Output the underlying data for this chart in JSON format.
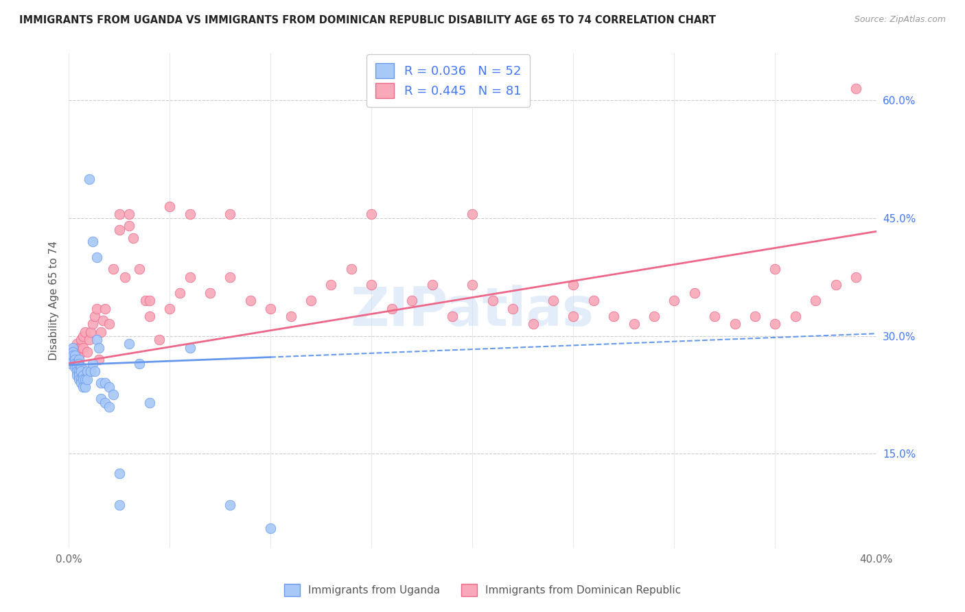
{
  "title": "IMMIGRANTS FROM UGANDA VS IMMIGRANTS FROM DOMINICAN REPUBLIC DISABILITY AGE 65 TO 74 CORRELATION CHART",
  "source": "Source: ZipAtlas.com",
  "ylabel": "Disability Age 65 to 74",
  "xlim": [
    0.0,
    0.4
  ],
  "ylim": [
    0.03,
    0.66
  ],
  "x_tick_positions": [
    0.0,
    0.05,
    0.1,
    0.15,
    0.2,
    0.25,
    0.3,
    0.35,
    0.4
  ],
  "x_tick_labels": [
    "0.0%",
    "",
    "",
    "",
    "",
    "",
    "",
    "",
    "40.0%"
  ],
  "y_ticks_right": [
    0.15,
    0.3,
    0.45,
    0.6
  ],
  "y_tick_labels_right": [
    "15.0%",
    "30.0%",
    "45.0%",
    "60.0%"
  ],
  "legend_r1": "R = 0.036",
  "legend_n1": "N = 52",
  "legend_r2": "R = 0.445",
  "legend_n2": "N = 81",
  "color_uganda": "#a8c8f8",
  "color_uganda_edge": "#6699ee",
  "color_dr": "#f8a8b8",
  "color_dr_edge": "#ee6688",
  "color_blue_text": "#4477ff",
  "color_line_uganda": "#6699ee",
  "color_line_dr": "#ee6688",
  "watermark": "ZIPatlas",
  "uganda_x": [
    0.001,
    0.001,
    0.002,
    0.002,
    0.002,
    0.003,
    0.003,
    0.003,
    0.003,
    0.004,
    0.004,
    0.004,
    0.004,
    0.005,
    0.005,
    0.005,
    0.005,
    0.005,
    0.006,
    0.006,
    0.006,
    0.006,
    0.007,
    0.007,
    0.007,
    0.008,
    0.008,
    0.009,
    0.009,
    0.01,
    0.011,
    0.012,
    0.013,
    0.014,
    0.015,
    0.016,
    0.018,
    0.02,
    0.022,
    0.025,
    0.012,
    0.014,
    0.016,
    0.018,
    0.02,
    0.025,
    0.03,
    0.035,
    0.04,
    0.06,
    0.08,
    0.1
  ],
  "uganda_y": [
    0.27,
    0.265,
    0.285,
    0.28,
    0.275,
    0.275,
    0.27,
    0.265,
    0.26,
    0.265,
    0.26,
    0.255,
    0.25,
    0.27,
    0.265,
    0.255,
    0.25,
    0.245,
    0.26,
    0.255,
    0.245,
    0.24,
    0.25,
    0.245,
    0.235,
    0.245,
    0.235,
    0.255,
    0.245,
    0.5,
    0.255,
    0.265,
    0.255,
    0.295,
    0.285,
    0.24,
    0.24,
    0.235,
    0.225,
    0.125,
    0.42,
    0.4,
    0.22,
    0.215,
    0.21,
    0.085,
    0.29,
    0.265,
    0.215,
    0.285,
    0.085,
    0.055
  ],
  "dr_x": [
    0.001,
    0.002,
    0.002,
    0.003,
    0.003,
    0.004,
    0.004,
    0.005,
    0.005,
    0.006,
    0.006,
    0.007,
    0.007,
    0.008,
    0.009,
    0.01,
    0.011,
    0.012,
    0.013,
    0.014,
    0.015,
    0.016,
    0.017,
    0.018,
    0.02,
    0.022,
    0.025,
    0.028,
    0.03,
    0.032,
    0.035,
    0.038,
    0.04,
    0.045,
    0.05,
    0.055,
    0.06,
    0.07,
    0.08,
    0.09,
    0.1,
    0.11,
    0.12,
    0.13,
    0.14,
    0.15,
    0.16,
    0.17,
    0.18,
    0.19,
    0.2,
    0.21,
    0.22,
    0.23,
    0.24,
    0.25,
    0.26,
    0.27,
    0.28,
    0.29,
    0.3,
    0.31,
    0.32,
    0.33,
    0.34,
    0.35,
    0.36,
    0.37,
    0.38,
    0.39,
    0.025,
    0.03,
    0.04,
    0.05,
    0.06,
    0.08,
    0.15,
    0.2,
    0.25,
    0.35,
    0.39
  ],
  "dr_y": [
    0.27,
    0.265,
    0.28,
    0.275,
    0.285,
    0.275,
    0.29,
    0.285,
    0.275,
    0.285,
    0.295,
    0.3,
    0.285,
    0.305,
    0.28,
    0.295,
    0.305,
    0.315,
    0.325,
    0.335,
    0.27,
    0.305,
    0.32,
    0.335,
    0.315,
    0.385,
    0.435,
    0.375,
    0.44,
    0.425,
    0.385,
    0.345,
    0.325,
    0.295,
    0.335,
    0.355,
    0.375,
    0.355,
    0.375,
    0.345,
    0.335,
    0.325,
    0.345,
    0.365,
    0.385,
    0.365,
    0.335,
    0.345,
    0.365,
    0.325,
    0.365,
    0.345,
    0.335,
    0.315,
    0.345,
    0.365,
    0.345,
    0.325,
    0.315,
    0.325,
    0.345,
    0.355,
    0.325,
    0.315,
    0.325,
    0.315,
    0.325,
    0.345,
    0.365,
    0.375,
    0.455,
    0.455,
    0.345,
    0.465,
    0.455,
    0.455,
    0.455,
    0.455,
    0.325,
    0.385,
    0.615
  ]
}
